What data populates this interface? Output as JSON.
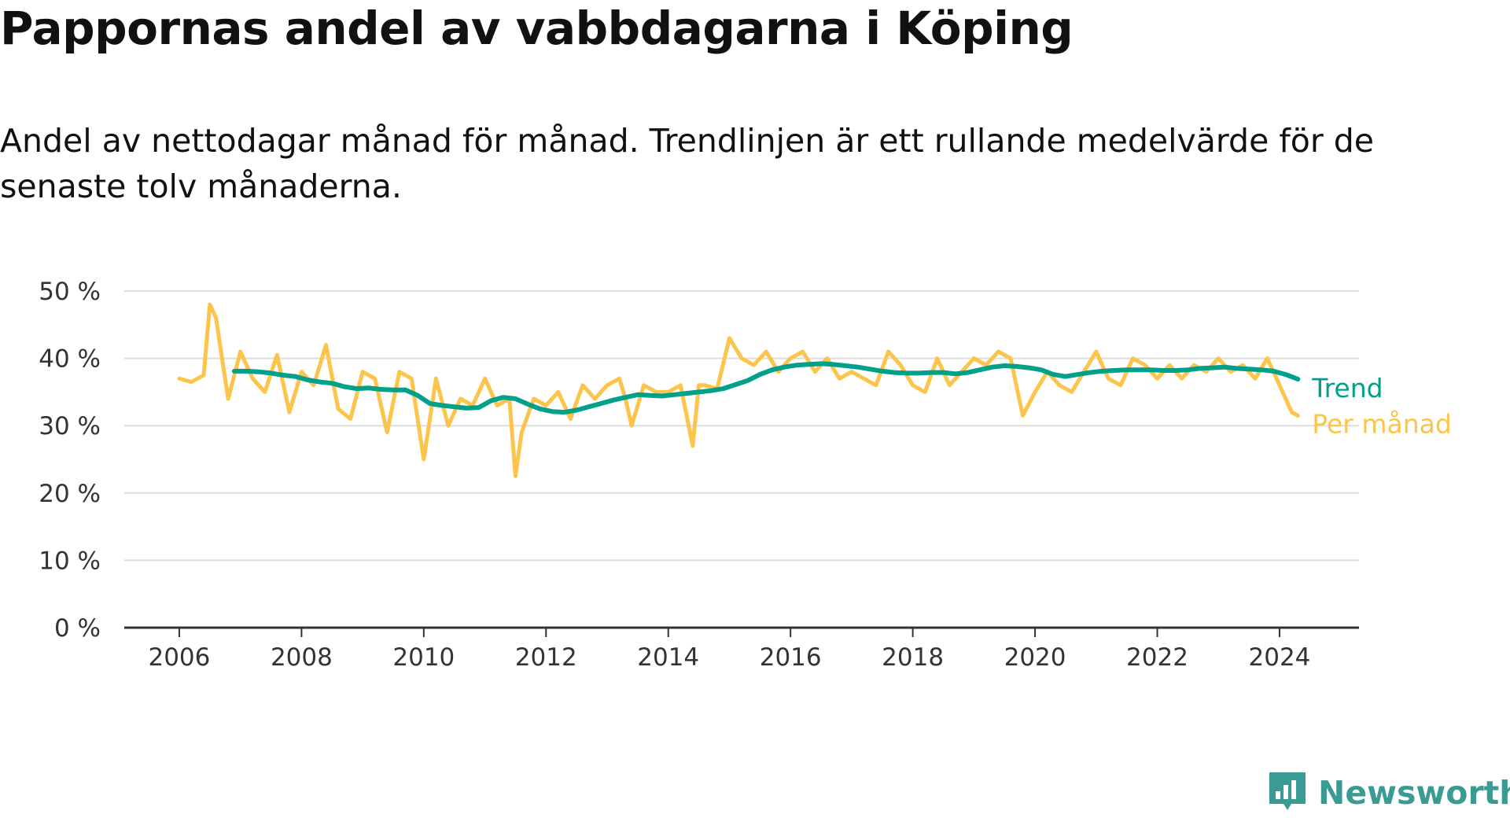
{
  "title": "Pappornas andel av vabbdagarna i Köping",
  "subtitle": "Andel av nettodagar månad för månad. Trendlinjen är ett rullande medelvärde för de senaste tolv månaderna.",
  "brand": {
    "name": "Newsworthy",
    "icon": "chart-logo-icon",
    "color": "#3a9a94"
  },
  "chart_data": {
    "type": "line",
    "title": "",
    "xlabel": "",
    "ylabel": "",
    "xlim": [
      2005.1,
      2025.3
    ],
    "ylim": [
      0,
      50
    ],
    "x_ticks": [
      {
        "value": 2006,
        "label": "2006"
      },
      {
        "value": 2008,
        "label": "2008"
      },
      {
        "value": 2010,
        "label": "2010"
      },
      {
        "value": 2012,
        "label": "2012"
      },
      {
        "value": 2014,
        "label": "2014"
      },
      {
        "value": 2016,
        "label": "2016"
      },
      {
        "value": 2018,
        "label": "2018"
      },
      {
        "value": 2020,
        "label": "2020"
      },
      {
        "value": 2022,
        "label": "2022"
      },
      {
        "value": 2024,
        "label": "2024"
      }
    ],
    "y_ticks": [
      {
        "value": 0,
        "label": "0 %"
      },
      {
        "value": 10,
        "label": "10 %"
      },
      {
        "value": 20,
        "label": "20 %"
      },
      {
        "value": 30,
        "label": "30 %"
      },
      {
        "value": 40,
        "label": "40 %"
      },
      {
        "value": 50,
        "label": "50 %"
      }
    ],
    "grid": true,
    "legend": "right, direct labels at line ends",
    "series": [
      {
        "name": "Per månad",
        "color": "#fcc44b",
        "x": [
          2006.0,
          2006.2,
          2006.4,
          2006.5,
          2006.6,
          2006.8,
          2007.0,
          2007.2,
          2007.4,
          2007.6,
          2007.8,
          2008.0,
          2008.2,
          2008.4,
          2008.6,
          2008.8,
          2009.0,
          2009.2,
          2009.4,
          2009.6,
          2009.8,
          2010.0,
          2010.2,
          2010.4,
          2010.6,
          2010.8,
          2011.0,
          2011.2,
          2011.4,
          2011.5,
          2011.6,
          2011.8,
          2012.0,
          2012.2,
          2012.4,
          2012.6,
          2012.8,
          2013.0,
          2013.2,
          2013.3,
          2013.4,
          2013.6,
          2013.8,
          2014.0,
          2014.2,
          2014.4,
          2014.5,
          2014.6,
          2014.8,
          2015.0,
          2015.2,
          2015.4,
          2015.6,
          2015.8,
          2016.0,
          2016.2,
          2016.4,
          2016.6,
          2016.8,
          2017.0,
          2017.2,
          2017.4,
          2017.6,
          2017.8,
          2018.0,
          2018.2,
          2018.4,
          2018.6,
          2018.8,
          2019.0,
          2019.2,
          2019.4,
          2019.6,
          2019.8,
          2020.0,
          2020.2,
          2020.4,
          2020.6,
          2020.8,
          2021.0,
          2021.2,
          2021.4,
          2021.6,
          2021.8,
          2022.0,
          2022.2,
          2022.4,
          2022.6,
          2022.8,
          2023.0,
          2023.2,
          2023.4,
          2023.6,
          2023.8,
          2024.0,
          2024.2,
          2024.3
        ],
        "y": [
          37,
          36.5,
          37.5,
          48,
          46,
          34,
          41,
          37,
          35,
          40.5,
          32,
          38,
          36,
          42,
          32.5,
          31,
          38,
          37,
          29,
          38,
          37,
          25,
          37,
          30,
          34,
          33,
          37,
          33,
          34,
          22.5,
          29,
          34,
          33,
          35,
          31,
          36,
          34,
          36,
          37,
          34,
          30,
          36,
          35,
          35,
          36,
          27,
          36,
          36,
          35.5,
          43,
          40,
          39,
          41,
          38,
          40,
          41,
          38,
          40,
          37,
          38,
          37,
          36,
          41,
          39,
          36,
          35,
          40,
          36,
          38,
          40,
          39,
          41,
          40,
          31.5,
          35,
          38,
          36,
          35,
          38,
          41,
          37,
          36,
          40,
          39,
          37,
          39,
          37,
          39,
          38,
          40,
          38,
          39,
          37,
          40,
          36,
          32,
          31.5
        ]
      },
      {
        "name": "Trend",
        "color": "#00a08a",
        "x": [
          2006.9,
          2007.1,
          2007.3,
          2007.5,
          2007.7,
          2007.9,
          2008.1,
          2008.3,
          2008.5,
          2008.7,
          2008.9,
          2009.1,
          2009.3,
          2009.5,
          2009.7,
          2009.9,
          2010.1,
          2010.3,
          2010.5,
          2010.7,
          2010.9,
          2011.1,
          2011.3,
          2011.5,
          2011.7,
          2011.9,
          2012.1,
          2012.3,
          2012.5,
          2012.7,
          2012.9,
          2013.1,
          2013.3,
          2013.5,
          2013.7,
          2013.9,
          2014.1,
          2014.3,
          2014.5,
          2014.7,
          2014.9,
          2015.1,
          2015.3,
          2015.5,
          2015.7,
          2015.9,
          2016.1,
          2016.3,
          2016.5,
          2016.7,
          2016.9,
          2017.1,
          2017.3,
          2017.5,
          2017.7,
          2017.9,
          2018.1,
          2018.3,
          2018.5,
          2018.7,
          2018.9,
          2019.1,
          2019.3,
          2019.5,
          2019.7,
          2019.9,
          2020.1,
          2020.3,
          2020.5,
          2020.7,
          2020.9,
          2021.1,
          2021.3,
          2021.5,
          2021.7,
          2021.9,
          2022.1,
          2022.3,
          2022.5,
          2022.7,
          2022.9,
          2023.1,
          2023.3,
          2023.5,
          2023.7,
          2023.9,
          2024.1,
          2024.3
        ],
        "y": [
          38.1,
          38.1,
          38,
          37.8,
          37.5,
          37.3,
          36.8,
          36.5,
          36.3,
          35.8,
          35.5,
          35.6,
          35.4,
          35.3,
          35.3,
          34.5,
          33.3,
          33,
          32.8,
          32.6,
          32.7,
          33.7,
          34.2,
          34,
          33.2,
          32.5,
          32.1,
          32,
          32.3,
          32.8,
          33.3,
          33.8,
          34.2,
          34.6,
          34.5,
          34.4,
          34.6,
          34.8,
          35,
          35.2,
          35.5,
          36.1,
          36.7,
          37.6,
          38.3,
          38.7,
          39,
          39.1,
          39.2,
          39.1,
          38.9,
          38.7,
          38.4,
          38.1,
          37.9,
          37.8,
          37.8,
          37.9,
          37.9,
          37.7,
          37.9,
          38.3,
          38.7,
          38.9,
          38.8,
          38.6,
          38.3,
          37.6,
          37.3,
          37.6,
          37.9,
          38.1,
          38.2,
          38.3,
          38.3,
          38.3,
          38.2,
          38.2,
          38.3,
          38.5,
          38.6,
          38.7,
          38.5,
          38.4,
          38.3,
          38.1,
          37.6,
          36.9
        ]
      }
    ]
  }
}
